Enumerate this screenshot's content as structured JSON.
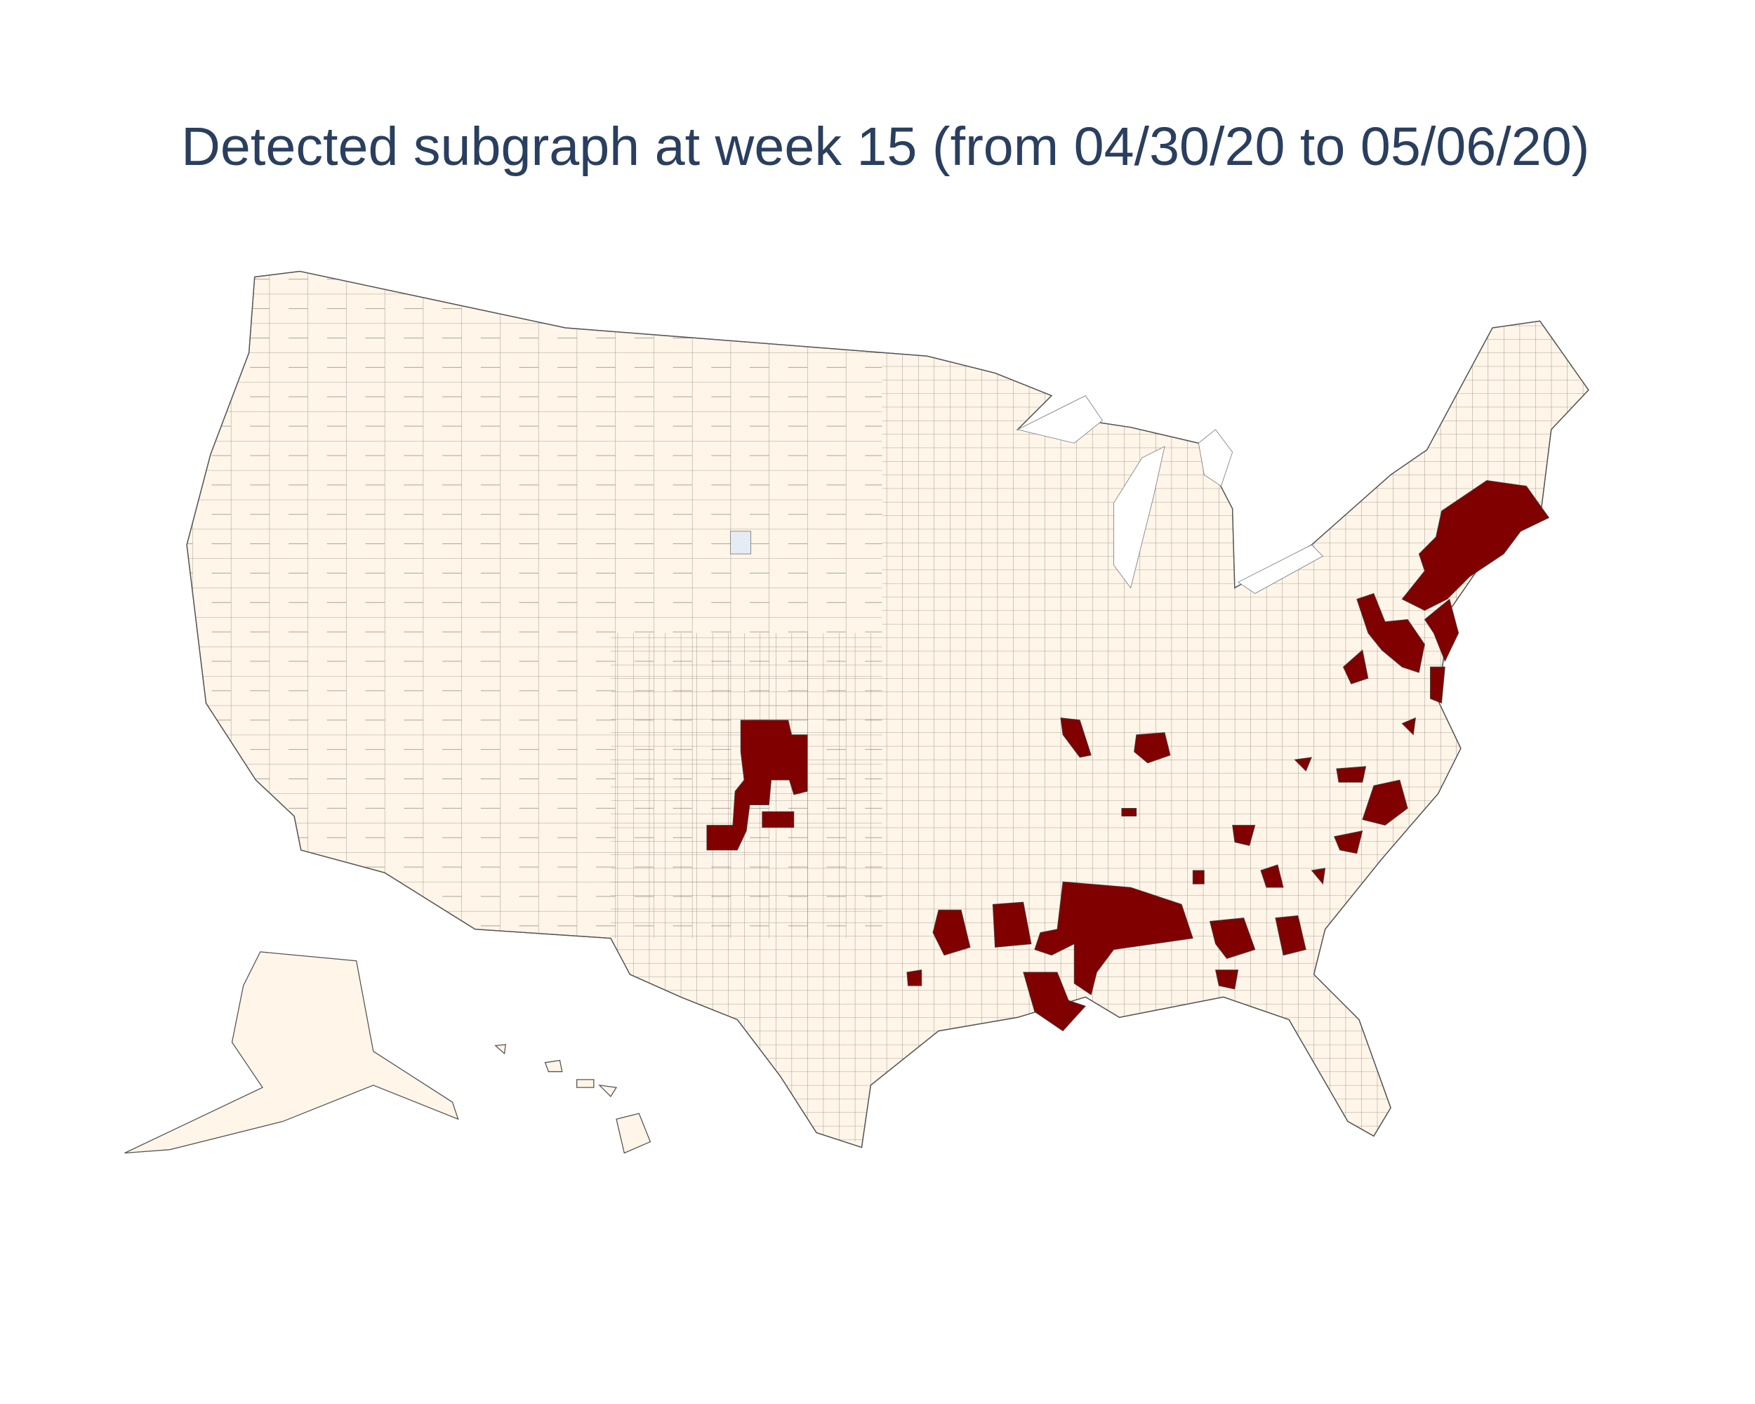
{
  "title": "Detected subgraph at week 15 (from 04/30/20 to 05/06/20)"
}
